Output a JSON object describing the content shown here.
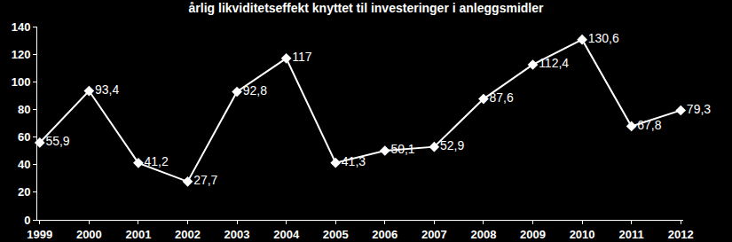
{
  "chart_data": {
    "type": "line",
    "title": "årlig likviditetseffekt knyttet til investeringer i anleggsmidler",
    "categories": [
      "1999",
      "2000",
      "2001",
      "2002",
      "2003",
      "2004",
      "2005",
      "2006",
      "2007",
      "2008",
      "2009",
      "2010",
      "2011",
      "2012"
    ],
    "values": [
      55.9,
      93.4,
      41.2,
      27.7,
      92.8,
      117,
      41.3,
      50.1,
      52.9,
      87.6,
      112.4,
      130.6,
      67.8,
      79.3
    ],
    "value_labels": [
      "55,9",
      "93,4",
      "41,2",
      "27,7",
      "92,8",
      "117",
      "41,3",
      "50,1",
      "52,9",
      "87,6",
      "112,4",
      "130,6",
      "67,8",
      "79,3"
    ],
    "color": "#ffffff",
    "marker": "diamond",
    "line_style": "solid",
    "ylim": [
      0,
      140
    ],
    "yticks": [
      0,
      20,
      40,
      60,
      80,
      100,
      120,
      140
    ],
    "grid": false,
    "data_labels": true
  }
}
